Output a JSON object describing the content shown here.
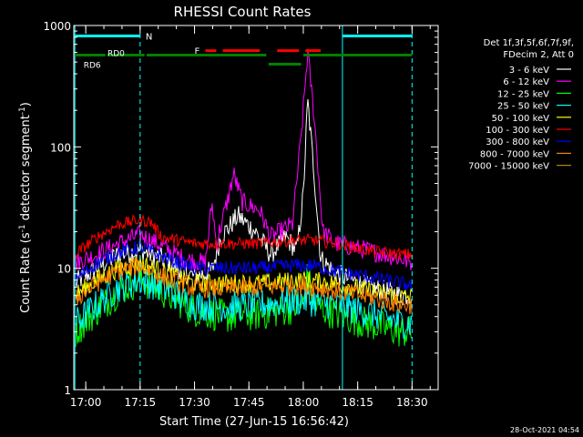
{
  "chart_data": {
    "type": "line",
    "title": "RHESSI Count Rates",
    "xlabel": "Start Time (27-Jun-15 16:56:42)",
    "ylabel_parts": [
      "Count Rate (s",
      "-1",
      " detector segment",
      "-1",
      ")"
    ],
    "yscale": "log",
    "ylim": [
      1,
      1000
    ],
    "xlim_min": [
      16.95,
      18.62
    ],
    "x_ticks": [
      {
        "t": 17.0,
        "label": "17:00"
      },
      {
        "t": 17.25,
        "label": "17:15"
      },
      {
        "t": 17.5,
        "label": "17:30"
      },
      {
        "t": 17.75,
        "label": "17:45"
      },
      {
        "t": 18.0,
        "label": "18:00"
      },
      {
        "t": 18.25,
        "label": "18:15"
      },
      {
        "t": 18.5,
        "label": "18:30"
      }
    ],
    "y_ticks": [
      {
        "v": 1,
        "label": "1"
      },
      {
        "v": 10,
        "label": "10"
      },
      {
        "v": 100,
        "label": "100"
      },
      {
        "v": 1000,
        "label": "1000"
      }
    ],
    "legend_header": [
      "Det 1f,3f,5f,6f,7f,9f,",
      "FDecim 2, Att 0"
    ],
    "series": [
      {
        "name": "3 - 6 keV",
        "color": "#ffffff",
        "points": [
          [
            16.95,
            7.5
          ],
          [
            17.05,
            10
          ],
          [
            17.15,
            13
          ],
          [
            17.25,
            14
          ],
          [
            17.35,
            12
          ],
          [
            17.5,
            8.5
          ],
          [
            17.58,
            9.5
          ],
          [
            17.62,
            18
          ],
          [
            17.7,
            27
          ],
          [
            17.78,
            20
          ],
          [
            17.85,
            13
          ],
          [
            17.92,
            18
          ],
          [
            17.97,
            14
          ],
          [
            18.0,
            40
          ],
          [
            18.02,
            240
          ],
          [
            18.05,
            60
          ],
          [
            18.08,
            12
          ],
          [
            18.15,
            9
          ],
          [
            18.3,
            7
          ],
          [
            18.45,
            6
          ],
          [
            18.5,
            6
          ]
        ]
      },
      {
        "name": "6 - 12 keV",
        "color": "#ff00ff",
        "points": [
          [
            16.95,
            11
          ],
          [
            17.05,
            13
          ],
          [
            17.15,
            16
          ],
          [
            17.25,
            19
          ],
          [
            17.33,
            16
          ],
          [
            17.45,
            12
          ],
          [
            17.55,
            11
          ],
          [
            17.58,
            35
          ],
          [
            17.6,
            16
          ],
          [
            17.65,
            35
          ],
          [
            17.68,
            60
          ],
          [
            17.72,
            35
          ],
          [
            17.8,
            30
          ],
          [
            17.85,
            18
          ],
          [
            17.95,
            23
          ],
          [
            17.99,
            120
          ],
          [
            18.02,
            600
          ],
          [
            18.05,
            180
          ],
          [
            18.09,
            20
          ],
          [
            18.15,
            16
          ],
          [
            18.3,
            14
          ],
          [
            18.45,
            12
          ],
          [
            18.5,
            11
          ]
        ]
      },
      {
        "name": "12 - 25 keV",
        "color": "#00ff00",
        "points": [
          [
            16.95,
            3
          ],
          [
            17.05,
            4.5
          ],
          [
            17.15,
            6.5
          ],
          [
            17.25,
            8
          ],
          [
            17.35,
            6.5
          ],
          [
            17.5,
            4.5
          ],
          [
            17.65,
            4
          ],
          [
            17.8,
            4.2
          ],
          [
            17.9,
            4.5
          ],
          [
            18.0,
            5
          ],
          [
            18.02,
            9
          ],
          [
            18.05,
            5
          ],
          [
            18.15,
            4.2
          ],
          [
            18.3,
            3.5
          ],
          [
            18.45,
            3
          ],
          [
            18.5,
            3
          ]
        ]
      },
      {
        "name": "25 - 50 keV",
        "color": "#00ffff",
        "points": [
          [
            16.95,
            3.5
          ],
          [
            17.05,
            5
          ],
          [
            17.15,
            7
          ],
          [
            17.25,
            8
          ],
          [
            17.35,
            7
          ],
          [
            17.5,
            5
          ],
          [
            17.65,
            4.8
          ],
          [
            17.8,
            5
          ],
          [
            18.0,
            5.5
          ],
          [
            18.15,
            5
          ],
          [
            18.3,
            4.3
          ],
          [
            18.45,
            3.6
          ],
          [
            18.5,
            3.5
          ]
        ]
      },
      {
        "name": "50 - 100 keV",
        "color": "#ffff00",
        "points": [
          [
            16.95,
            6
          ],
          [
            17.05,
            8
          ],
          [
            17.15,
            10
          ],
          [
            17.25,
            11
          ],
          [
            17.35,
            9.5
          ],
          [
            17.5,
            7.5
          ],
          [
            17.65,
            7.5
          ],
          [
            17.8,
            7.5
          ],
          [
            18.0,
            8
          ],
          [
            18.15,
            7.5
          ],
          [
            18.3,
            6.5
          ],
          [
            18.45,
            5.8
          ],
          [
            18.5,
            5.8
          ]
        ]
      },
      {
        "name": "100 - 300 keV",
        "color": "#ff0000",
        "points": [
          [
            16.95,
            13
          ],
          [
            17.05,
            18
          ],
          [
            17.15,
            23
          ],
          [
            17.25,
            25
          ],
          [
            17.3,
            24
          ],
          [
            17.35,
            18
          ],
          [
            17.5,
            16
          ],
          [
            17.65,
            16
          ],
          [
            17.8,
            16
          ],
          [
            17.95,
            17
          ],
          [
            18.05,
            17
          ],
          [
            18.15,
            16
          ],
          [
            18.3,
            14
          ],
          [
            18.45,
            13
          ],
          [
            18.5,
            13
          ]
        ]
      },
      {
        "name": "300 - 800 keV",
        "color": "#0000ff",
        "points": [
          [
            16.95,
            8
          ],
          [
            17.05,
            11
          ],
          [
            17.15,
            13.5
          ],
          [
            17.25,
            15
          ],
          [
            17.35,
            12.5
          ],
          [
            17.5,
            10
          ],
          [
            17.65,
            10
          ],
          [
            17.8,
            10
          ],
          [
            17.95,
            10.5
          ],
          [
            18.05,
            10.5
          ],
          [
            18.15,
            9.5
          ],
          [
            18.3,
            8.5
          ],
          [
            18.45,
            7.5
          ],
          [
            18.5,
            7.2
          ]
        ]
      },
      {
        "name": "800 - 7000 keV",
        "color": "#ff8000",
        "points": [
          [
            16.95,
            5.5
          ],
          [
            17.05,
            7.5
          ],
          [
            17.15,
            9.5
          ],
          [
            17.25,
            10.5
          ],
          [
            17.35,
            8.5
          ],
          [
            17.5,
            6.8
          ],
          [
            17.65,
            6.8
          ],
          [
            17.8,
            7
          ],
          [
            17.95,
            7.2
          ],
          [
            18.05,
            7
          ],
          [
            18.15,
            6.5
          ],
          [
            18.3,
            5.8
          ],
          [
            18.45,
            5
          ],
          [
            18.5,
            5
          ]
        ]
      },
      {
        "name": "7000 - 15000 keV",
        "color": "#b8860b",
        "points": []
      }
    ],
    "vlines": [
      {
        "t": 16.95,
        "style": "solid",
        "color": "#00ffff"
      },
      {
        "t": 17.25,
        "style": "dashed",
        "color": "#00ffff"
      },
      {
        "t": 18.18,
        "style": "solid",
        "color": "#00ffff"
      },
      {
        "t": 18.5,
        "style": "dashed",
        "color": "#00ffff"
      }
    ],
    "state_bars": {
      "night": {
        "label": "N",
        "color": "#00ffff",
        "value": 820,
        "segments": [
          [
            16.95,
            17.25
          ],
          [
            18.18,
            18.5
          ]
        ]
      },
      "flare": {
        "label": "F",
        "color": "#ff0000",
        "value": 620,
        "segments": [
          [
            17.55,
            17.6
          ],
          [
            17.63,
            17.8
          ],
          [
            17.88,
            17.98
          ],
          [
            18.01,
            18.08
          ]
        ]
      },
      "decimation": {
        "color": "#008000",
        "value": 570,
        "labels": [
          {
            "text": "RD0",
            "t": 17.1,
            "v": 600
          },
          {
            "text": "RD6",
            "t": 16.99,
            "v": 480
          }
        ],
        "segments": [
          [
            16.95,
            17.09
          ],
          [
            17.1,
            17.27
          ],
          [
            17.28,
            17.83
          ],
          [
            17.84,
            17.99
          ],
          [
            18.0,
            18.5
          ]
        ],
        "low_segments": [
          [
            17.84,
            17.99
          ]
        ]
      }
    }
  },
  "footer": {
    "date": "28-Oct-2021 04:54"
  }
}
